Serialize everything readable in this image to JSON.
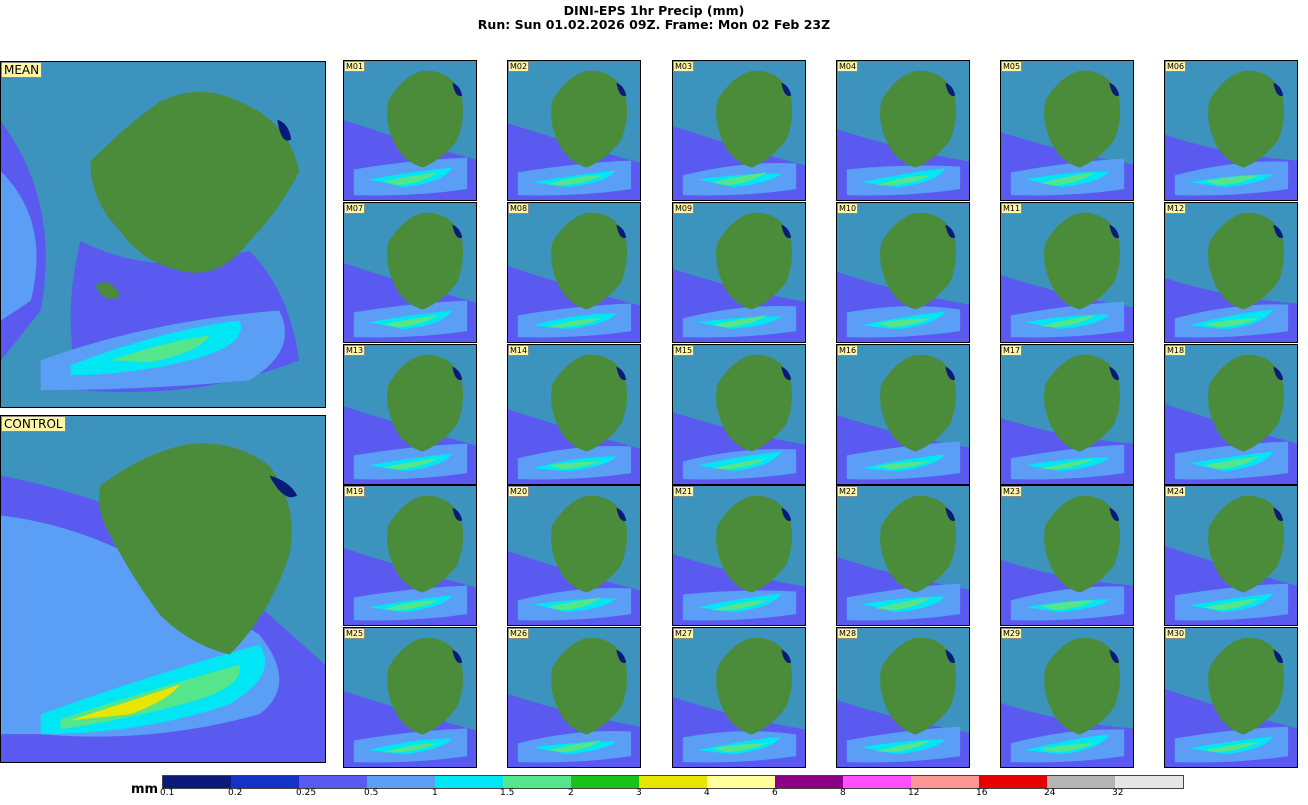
{
  "title": {
    "line1": "DINI-EPS 1hr Precip (mm)",
    "line2": "Run: Sun 01.02.2026 09Z.  Frame: Mon 02 Feb 23Z"
  },
  "big_panels": [
    "MEAN",
    "CONTROL"
  ],
  "members": [
    "M01",
    "M02",
    "M03",
    "M04",
    "M05",
    "M06",
    "M07",
    "M08",
    "M09",
    "M10",
    "M11",
    "M12",
    "M13",
    "M14",
    "M15",
    "M16",
    "M17",
    "M18",
    "M19",
    "M20",
    "M21",
    "M22",
    "M23",
    "M24",
    "M25",
    "M26",
    "M27",
    "M28",
    "M29",
    "M30"
  ],
  "colorbar": {
    "unit": "mm",
    "ticks": [
      "0.1",
      "0.2",
      "0.25",
      "0.5",
      "1",
      "1.5",
      "2",
      "3",
      "4",
      "6",
      "8",
      "12",
      "16",
      "24",
      "32"
    ],
    "colors": [
      "#0a1a78",
      "#1432c8",
      "#5a5af0",
      "#5a9ef5",
      "#00e6f5",
      "#55e68c",
      "#19c319",
      "#e6e600",
      "#ffff9b",
      "#8c0087",
      "#ff50ff",
      "#ff9696",
      "#e60000",
      "#b4b4b4",
      "#e6e6e6"
    ]
  },
  "colors": {
    "sea": "#3c93be",
    "land": "#4a8c3a",
    "label_bg": "#fff5a8"
  }
}
